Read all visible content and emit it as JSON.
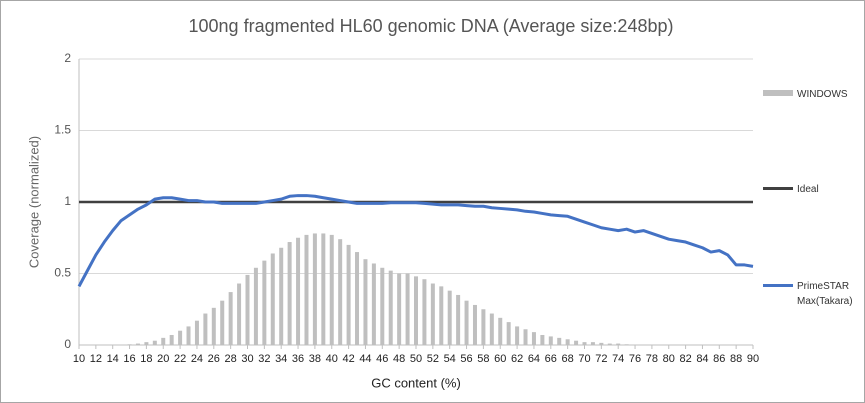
{
  "chart_data": {
    "type": "bar",
    "title": "100ng fragmented HL60 genomic DNA (Average size:248bp)",
    "x_label": "GC content (%)",
    "y_label": "Coverage (normalized)",
    "x": [
      10,
      11,
      12,
      13,
      14,
      15,
      16,
      17,
      18,
      19,
      20,
      21,
      22,
      23,
      24,
      25,
      26,
      27,
      28,
      29,
      30,
      31,
      32,
      33,
      34,
      35,
      36,
      37,
      38,
      39,
      40,
      41,
      42,
      43,
      44,
      45,
      46,
      47,
      48,
      49,
      50,
      51,
      52,
      53,
      54,
      55,
      56,
      57,
      58,
      59,
      60,
      61,
      62,
      63,
      64,
      65,
      66,
      67,
      68,
      69,
      70,
      71,
      72,
      73,
      74,
      75,
      76,
      77,
      78,
      79,
      80,
      81,
      82,
      83,
      84,
      85,
      86,
      87,
      88,
      89,
      90
    ],
    "xlim": [
      10,
      90
    ],
    "xticks": [
      10,
      12,
      14,
      16,
      18,
      20,
      22,
      24,
      26,
      28,
      30,
      32,
      34,
      36,
      38,
      40,
      42,
      44,
      46,
      48,
      50,
      52,
      54,
      56,
      58,
      60,
      62,
      64,
      66,
      68,
      70,
      72,
      74,
      76,
      78,
      80,
      82,
      84,
      86,
      88,
      90
    ],
    "ylim": [
      0,
      2
    ],
    "yticks": [
      0,
      0.5,
      1,
      1.5,
      2
    ],
    "grid": true,
    "legend": "right",
    "series": [
      {
        "name": "WINDOWS",
        "type": "bar",
        "color": "#bfbfbf",
        "values": [
          0,
          0,
          0,
          0,
          0,
          0,
          0.005,
          0.01,
          0.02,
          0.03,
          0.05,
          0.07,
          0.1,
          0.13,
          0.17,
          0.22,
          0.26,
          0.31,
          0.37,
          0.43,
          0.49,
          0.54,
          0.59,
          0.64,
          0.68,
          0.72,
          0.75,
          0.77,
          0.78,
          0.78,
          0.77,
          0.74,
          0.7,
          0.65,
          0.6,
          0.57,
          0.54,
          0.52,
          0.5,
          0.5,
          0.48,
          0.46,
          0.43,
          0.41,
          0.38,
          0.35,
          0.31,
          0.28,
          0.25,
          0.22,
          0.19,
          0.16,
          0.13,
          0.11,
          0.09,
          0.07,
          0.06,
          0.05,
          0.04,
          0.03,
          0.02,
          0.02,
          0.015,
          0.01,
          0.01,
          0.005,
          0.003,
          0.002,
          0.002,
          0.001,
          0.001,
          0.001,
          0.001,
          0,
          0,
          0,
          0,
          0,
          0,
          0,
          0
        ]
      },
      {
        "name": "Ideal",
        "type": "line",
        "color": "#404040",
        "values": [
          1,
          1,
          1,
          1,
          1,
          1,
          1,
          1,
          1,
          1,
          1,
          1,
          1,
          1,
          1,
          1,
          1,
          1,
          1,
          1,
          1,
          1,
          1,
          1,
          1,
          1,
          1,
          1,
          1,
          1,
          1,
          1,
          1,
          1,
          1,
          1,
          1,
          1,
          1,
          1,
          1,
          1,
          1,
          1,
          1,
          1,
          1,
          1,
          1,
          1,
          1,
          1,
          1,
          1,
          1,
          1,
          1,
          1,
          1,
          1,
          1,
          1,
          1,
          1,
          1,
          1,
          1,
          1,
          1,
          1,
          1,
          1,
          1,
          1,
          1,
          1,
          1,
          1,
          1,
          1,
          1
        ]
      },
      {
        "name": "PrimeSTAR Max(Takara)",
        "type": "line",
        "color": "#4472c4",
        "values": [
          0.41,
          0.52,
          0.63,
          0.72,
          0.8,
          0.87,
          0.91,
          0.95,
          0.98,
          1.02,
          1.03,
          1.03,
          1.02,
          1.01,
          1.01,
          1.0,
          1.0,
          0.99,
          0.99,
          0.99,
          0.99,
          0.99,
          1.0,
          1.01,
          1.02,
          1.04,
          1.045,
          1.045,
          1.04,
          1.03,
          1.02,
          1.01,
          1.0,
          0.99,
          0.99,
          0.99,
          0.99,
          0.995,
          0.995,
          0.995,
          0.995,
          0.99,
          0.985,
          0.98,
          0.98,
          0.98,
          0.975,
          0.97,
          0.97,
          0.96,
          0.955,
          0.95,
          0.945,
          0.935,
          0.93,
          0.92,
          0.91,
          0.905,
          0.9,
          0.88,
          0.86,
          0.84,
          0.82,
          0.81,
          0.8,
          0.81,
          0.79,
          0.8,
          0.78,
          0.76,
          0.74,
          0.73,
          0.72,
          0.7,
          0.68,
          0.65,
          0.66,
          0.63,
          0.56,
          0.56,
          0.55
        ]
      }
    ]
  }
}
